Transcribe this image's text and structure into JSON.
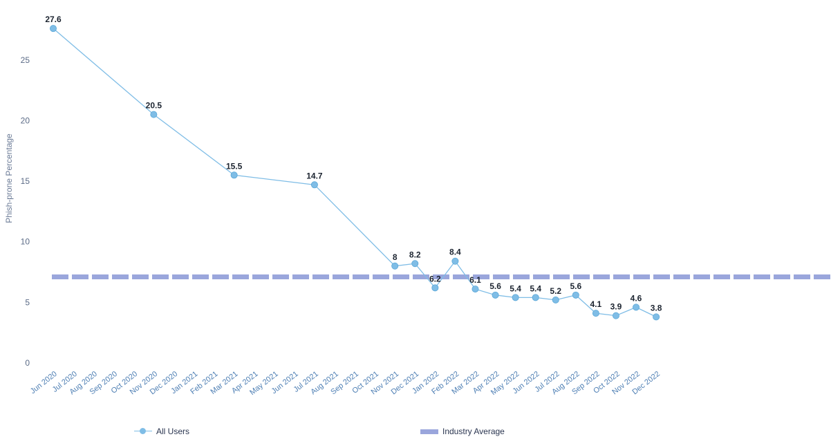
{
  "chart_data": {
    "type": "line",
    "ylabel": "Phish-prone Percentage",
    "ylim": [
      0,
      30
    ],
    "yticks": [
      0,
      5,
      10,
      15,
      20,
      25
    ],
    "categories": [
      "Jun 2020",
      "Jul 2020",
      "Aug 2020",
      "Sep 2020",
      "Oct 2020",
      "Nov 2020",
      "Dec 2020",
      "Jan 2021",
      "Feb 2021",
      "Mar 2021",
      "Apr 2021",
      "May 2021",
      "Jun 2021",
      "Jul 2021",
      "Aug 2021",
      "Sep 2021",
      "Oct 2021",
      "Nov 2021",
      "Dec 2021",
      "Jan 2022",
      "Feb 2022",
      "Mar 2022",
      "Apr 2022",
      "May 2022",
      "Jun 2022",
      "Jul 2022",
      "Aug 2022",
      "Sep 2022",
      "Oct 2022",
      "Nov 2022",
      "Dec 2022"
    ],
    "series": [
      {
        "name": "All Users",
        "color": "#7fbde6",
        "points": [
          {
            "x": "Jun 2020",
            "y": 27.6,
            "label": "27.6"
          },
          {
            "x": "Nov 2020",
            "y": 20.5,
            "label": "20.5"
          },
          {
            "x": "Mar 2021",
            "y": 15.5,
            "label": "15.5"
          },
          {
            "x": "Jul 2021",
            "y": 14.7,
            "label": "14.7"
          },
          {
            "x": "Nov 2021",
            "y": 8,
            "label": "8"
          },
          {
            "x": "Dec 2021",
            "y": 8.2,
            "label": "8.2"
          },
          {
            "x": "Jan 2022",
            "y": 6.2,
            "label": "6.2"
          },
          {
            "x": "Feb 2022",
            "y": 8.4,
            "label": "8.4"
          },
          {
            "x": "Mar 2022",
            "y": 6.1,
            "label": "6.1"
          },
          {
            "x": "Apr 2022",
            "y": 5.6,
            "label": "5.6"
          },
          {
            "x": "May 2022",
            "y": 5.4,
            "label": "5.4"
          },
          {
            "x": "Jun 2022",
            "y": 5.4,
            "label": "5.4"
          },
          {
            "x": "Jul 2022",
            "y": 5.2,
            "label": "5.2"
          },
          {
            "x": "Aug 2022",
            "y": 5.6,
            "label": "5.6"
          },
          {
            "x": "Sep 2022",
            "y": 4.1,
            "label": "4.1"
          },
          {
            "x": "Oct 2022",
            "y": 3.9,
            "label": "3.9"
          },
          {
            "x": "Nov 2022",
            "y": 4.6,
            "label": "4.6"
          },
          {
            "x": "Dec 2022",
            "y": 3.8,
            "label": "3.8"
          }
        ]
      },
      {
        "name": "Industry Average",
        "color": "#9aa6dc",
        "style": "dashed-bar",
        "value": 7.1
      }
    ],
    "legend_position": "bottom",
    "grid": false
  }
}
